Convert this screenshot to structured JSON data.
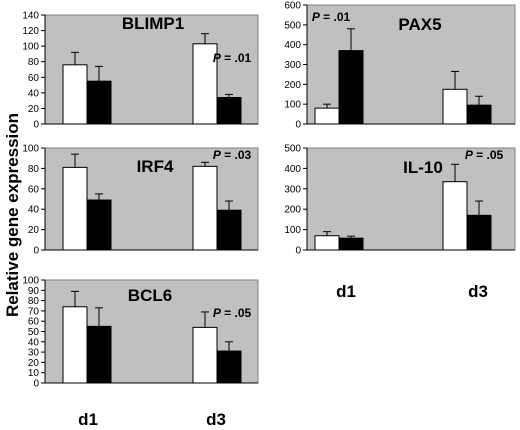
{
  "ylabel": "Relative gene expression",
  "x_labels_bottom_left": [
    "d1",
    "d3"
  ],
  "x_labels_bottom_right": [
    "d1",
    "d3"
  ],
  "colors": {
    "panel_bg": "#c0c0c0",
    "bar_white": "#ffffff",
    "bar_black": "#000000",
    "outline": "#000000"
  },
  "chart_data": [
    {
      "type": "bar",
      "title": "BLIMP1",
      "ylim": [
        0,
        140
      ],
      "yticks": [
        0,
        20,
        40,
        60,
        80,
        100,
        120,
        140
      ],
      "categories": [
        "d1",
        "d3"
      ],
      "series": [
        {
          "color": "white",
          "values": [
            76,
            103
          ],
          "errors": [
            16,
            13
          ]
        },
        {
          "color": "black",
          "values": [
            55,
            34
          ],
          "errors": [
            19,
            4
          ]
        }
      ],
      "annotations": [
        {
          "group": 1,
          "p": "P",
          "rest": " = .01"
        }
      ]
    },
    {
      "type": "bar",
      "title": "PAX5",
      "ylim": [
        0,
        600
      ],
      "yticks": [
        0,
        100,
        200,
        300,
        400,
        500,
        600
      ],
      "categories": [
        "d1",
        "d3"
      ],
      "series": [
        {
          "color": "white",
          "values": [
            80,
            175
          ],
          "errors": [
            20,
            90
          ]
        },
        {
          "color": "black",
          "values": [
            370,
            95
          ],
          "errors": [
            110,
            45
          ]
        }
      ],
      "annotations": [
        {
          "group": 0,
          "p": "P",
          "rest": " = .01"
        }
      ]
    },
    {
      "type": "bar",
      "title": "IRF4",
      "ylim": [
        0,
        100
      ],
      "yticks": [
        0,
        20,
        40,
        60,
        80,
        100
      ],
      "categories": [
        "d1",
        "d3"
      ],
      "series": [
        {
          "color": "white",
          "values": [
            81,
            82
          ],
          "errors": [
            13,
            4
          ]
        },
        {
          "color": "black",
          "values": [
            49,
            39
          ],
          "errors": [
            6,
            9
          ]
        }
      ],
      "annotations": [
        {
          "group": 1,
          "p": "P",
          "rest": " = .03"
        }
      ]
    },
    {
      "type": "bar",
      "title": "IL-10",
      "ylim": [
        0,
        500
      ],
      "yticks": [
        0,
        100,
        200,
        300,
        400,
        500
      ],
      "categories": [
        "d1",
        "d3"
      ],
      "series": [
        {
          "color": "white",
          "values": [
            70,
            335
          ],
          "errors": [
            20,
            85
          ]
        },
        {
          "color": "black",
          "values": [
            58,
            170
          ],
          "errors": [
            10,
            70
          ]
        }
      ],
      "annotations": [
        {
          "group": 1,
          "p": "P",
          "rest": " = .05"
        }
      ]
    },
    {
      "type": "bar",
      "title": "BCL6",
      "ylim": [
        0,
        100
      ],
      "yticks": [
        0,
        10,
        20,
        30,
        40,
        50,
        60,
        70,
        80,
        90,
        100
      ],
      "categories": [
        "d1",
        "d3"
      ],
      "series": [
        {
          "color": "white",
          "values": [
            74,
            54
          ],
          "errors": [
            15,
            15
          ]
        },
        {
          "color": "black",
          "values": [
            55,
            31
          ],
          "errors": [
            18,
            9
          ]
        }
      ],
      "annotations": [
        {
          "group": 1,
          "p": "P",
          "rest": " = .05"
        }
      ]
    }
  ]
}
